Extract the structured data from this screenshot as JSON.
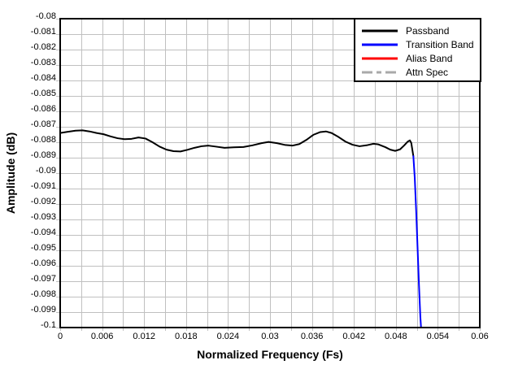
{
  "chart_data": {
    "type": "line",
    "title": "",
    "xlabel": "Normalized Frequency (Fs)",
    "ylabel": "Amplitude (dB)",
    "xlim": [
      0,
      0.06
    ],
    "ylim": [
      -0.1,
      -0.08
    ],
    "grid": true,
    "grid_color": "#c0c0c0",
    "axis_color": "#000000",
    "background_color": "#ffffff",
    "x_grid_step": 0.003,
    "y_grid_step": 0.001,
    "legend_position": "top-right",
    "x_ticks": {
      "values": [
        0,
        0.006,
        0.012,
        0.018,
        0.024,
        0.03,
        0.036,
        0.042,
        0.048,
        0.054,
        0.06
      ],
      "labels": [
        "0",
        "0.006",
        "0.012",
        "0.018",
        "0.024",
        "0.03",
        "0.036",
        "0.042",
        "0.048",
        "0.054",
        "0.06"
      ]
    },
    "y_ticks": {
      "values": [
        -0.08,
        -0.081,
        -0.082,
        -0.083,
        -0.084,
        -0.085,
        -0.086,
        -0.087,
        -0.088,
        -0.089,
        -0.09,
        -0.091,
        -0.092,
        -0.093,
        -0.094,
        -0.095,
        -0.096,
        -0.097,
        -0.098,
        -0.099,
        -0.1
      ],
      "labels": [
        "-0.08",
        "-0.081",
        "-0.082",
        "-0.083",
        "-0.084",
        "-0.085",
        "-0.086",
        "-0.087",
        "-0.088",
        "-0.089",
        "-0.09",
        "-0.091",
        "-0.092",
        "-0.093",
        "-0.094",
        "-0.095",
        "-0.096",
        "-0.097",
        "-0.098",
        "-0.099",
        "-0.1"
      ]
    },
    "series": [
      {
        "name": "Passband",
        "color": "#000000",
        "style": "solid",
        "points": [
          [
            0.0,
            -0.0874
          ],
          [
            0.001,
            -0.08733
          ],
          [
            0.0022,
            -0.08725
          ],
          [
            0.0032,
            -0.08723
          ],
          [
            0.0042,
            -0.0873
          ],
          [
            0.0052,
            -0.0874
          ],
          [
            0.0062,
            -0.08748
          ],
          [
            0.0072,
            -0.08762
          ],
          [
            0.0082,
            -0.08774
          ],
          [
            0.0092,
            -0.0878
          ],
          [
            0.0102,
            -0.08778
          ],
          [
            0.0112,
            -0.08769
          ],
          [
            0.0122,
            -0.08776
          ],
          [
            0.0132,
            -0.088
          ],
          [
            0.0142,
            -0.08828
          ],
          [
            0.0152,
            -0.08848
          ],
          [
            0.0162,
            -0.08858
          ],
          [
            0.0172,
            -0.0886
          ],
          [
            0.0182,
            -0.08849
          ],
          [
            0.0192,
            -0.08836
          ],
          [
            0.0202,
            -0.08826
          ],
          [
            0.0212,
            -0.08822
          ],
          [
            0.0222,
            -0.08828
          ],
          [
            0.0235,
            -0.08836
          ],
          [
            0.0248,
            -0.08833
          ],
          [
            0.0262,
            -0.08831
          ],
          [
            0.0275,
            -0.0882
          ],
          [
            0.0288,
            -0.08806
          ],
          [
            0.0298,
            -0.08798
          ],
          [
            0.031,
            -0.08806
          ],
          [
            0.0322,
            -0.08818
          ],
          [
            0.0332,
            -0.08822
          ],
          [
            0.0342,
            -0.08812
          ],
          [
            0.0352,
            -0.08785
          ],
          [
            0.0362,
            -0.08752
          ],
          [
            0.0372,
            -0.08734
          ],
          [
            0.038,
            -0.0873
          ],
          [
            0.0388,
            -0.0874
          ],
          [
            0.0398,
            -0.08766
          ],
          [
            0.0408,
            -0.08796
          ],
          [
            0.0418,
            -0.08816
          ],
          [
            0.0428,
            -0.08826
          ],
          [
            0.0438,
            -0.0882
          ],
          [
            0.0448,
            -0.0881
          ],
          [
            0.0455,
            -0.08814
          ],
          [
            0.0465,
            -0.08832
          ],
          [
            0.0472,
            -0.08848
          ],
          [
            0.0479,
            -0.08856
          ],
          [
            0.0486,
            -0.08846
          ],
          [
            0.0492,
            -0.0882
          ],
          [
            0.0497,
            -0.08796
          ],
          [
            0.05,
            -0.08788
          ],
          [
            0.0502,
            -0.08804
          ],
          [
            0.0505,
            -0.0889
          ]
        ]
      },
      {
        "name": "Transition Band",
        "color": "#0000ff",
        "style": "solid",
        "points": [
          [
            0.0505,
            -0.0889
          ],
          [
            0.0507,
            -0.0903
          ],
          [
            0.0509,
            -0.0924
          ],
          [
            0.0511,
            -0.0948
          ],
          [
            0.0513,
            -0.0972
          ],
          [
            0.0515,
            -0.0993
          ],
          [
            0.0516,
            -0.1
          ]
        ]
      },
      {
        "name": "Alias Band",
        "color": "#ff0000",
        "style": "solid",
        "points": []
      },
      {
        "name": "Attn Spec",
        "color": "#a9a9a9",
        "style": "dash-dot",
        "points": []
      }
    ]
  }
}
